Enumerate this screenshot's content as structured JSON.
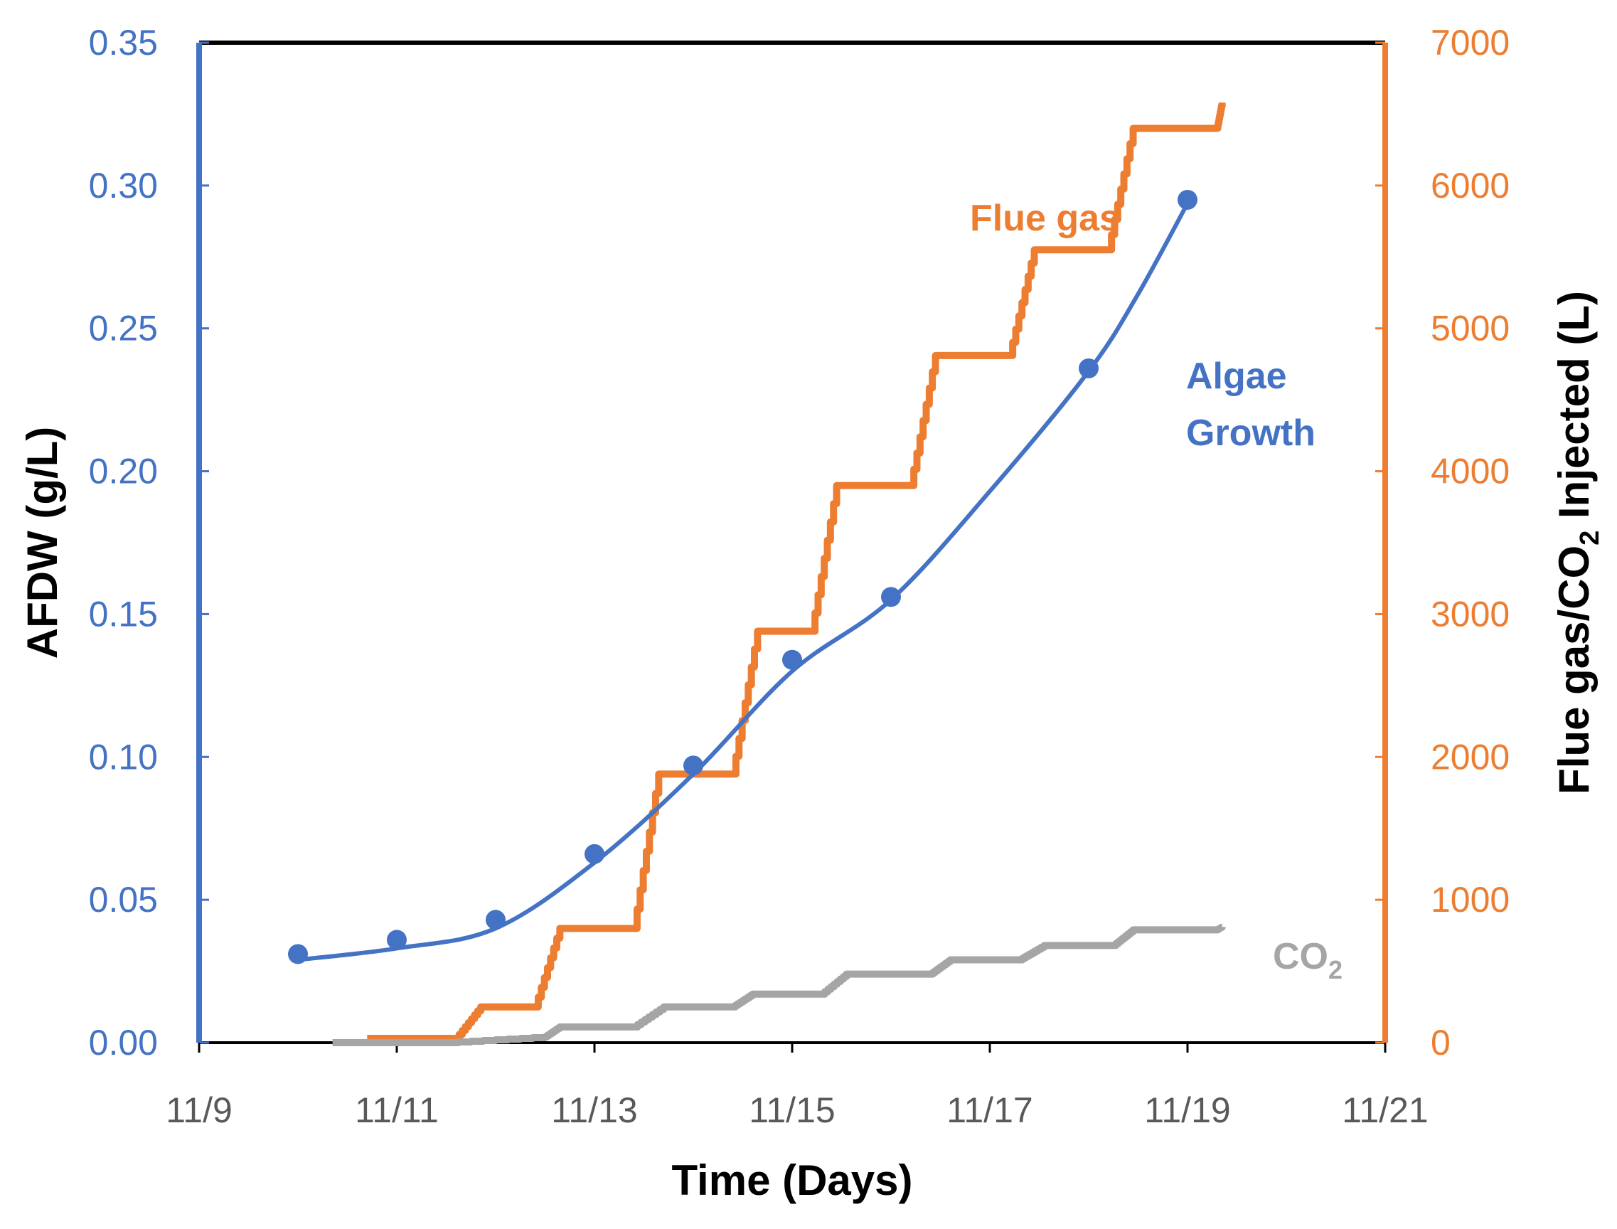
{
  "chart_data": {
    "type": "line",
    "title": "",
    "xlabel": "Time (Days)",
    "ylabel_left": "AFDW (g/L)",
    "ylabel_right": {
      "prefix": "Flue gas/CO",
      "sub": "2",
      "suffix": " Injected (L)"
    },
    "x_ticks": [
      "11/9",
      "11/11",
      "11/13",
      "11/15",
      "11/17",
      "11/19",
      "11/21"
    ],
    "xlim": [
      0,
      12
    ],
    "ylim_left": [
      0,
      0.35
    ],
    "ylim_right": [
      0,
      7000
    ],
    "y_ticks_left": [
      "0.00",
      "0.05",
      "0.10",
      "0.15",
      "0.20",
      "0.25",
      "0.30",
      "0.35"
    ],
    "y_ticks_right": [
      "0",
      "1000",
      "2000",
      "3000",
      "4000",
      "5000",
      "6000",
      "7000"
    ],
    "grid": false,
    "colors": {
      "algae": "#4472C4",
      "flue": "#ED7D31",
      "co2": "#A5A5A5",
      "frame": "#000000"
    },
    "annotations": {
      "flue": "Flue gas",
      "algae_line1": "Algae",
      "algae_line2": "Growth",
      "co2_main": "CO",
      "co2_sub": "2"
    },
    "series": [
      {
        "name": "Algae Growth",
        "axis": "left",
        "style": "markers+smooth",
        "points": [
          [
            1,
            0.031
          ],
          [
            2,
            0.036
          ],
          [
            3,
            0.043
          ],
          [
            4,
            0.066
          ],
          [
            5,
            0.097
          ],
          [
            6,
            0.134
          ],
          [
            7,
            0.156
          ],
          [
            9,
            0.236
          ],
          [
            10,
            0.295
          ]
        ],
        "fit": [
          [
            1,
            0.029
          ],
          [
            2,
            0.033
          ],
          [
            3,
            0.04
          ],
          [
            4,
            0.063
          ],
          [
            5,
            0.094
          ],
          [
            6,
            0.13
          ],
          [
            7,
            0.155
          ],
          [
            8,
            0.193
          ],
          [
            9,
            0.235
          ],
          [
            9.5,
            0.262
          ],
          [
            10.05,
            0.297
          ]
        ]
      },
      {
        "name": "Flue gas",
        "axis": "right",
        "style": "step",
        "points": [
          [
            1.7,
            30
          ],
          [
            2.6,
            30
          ],
          [
            2.85,
            250
          ],
          [
            3.4,
            250
          ],
          [
            3.65,
            800
          ],
          [
            4.4,
            800
          ],
          [
            4.65,
            1880
          ],
          [
            5.4,
            1880
          ],
          [
            5.65,
            2880
          ],
          [
            6.2,
            2880
          ],
          [
            6.45,
            3900
          ],
          [
            7.2,
            3900
          ],
          [
            7.45,
            4810
          ],
          [
            8.2,
            4810
          ],
          [
            8.45,
            5550
          ],
          [
            9.2,
            5550
          ],
          [
            9.45,
            6400
          ],
          [
            10.3,
            6400
          ],
          [
            10.35,
            6580
          ]
        ]
      },
      {
        "name": "CO2",
        "axis": "right",
        "style": "step",
        "points": [
          [
            1.35,
            0
          ],
          [
            2.5,
            0
          ],
          [
            3.5,
            40
          ],
          [
            3.65,
            110
          ],
          [
            4.4,
            110
          ],
          [
            4.7,
            250
          ],
          [
            5.4,
            250
          ],
          [
            5.6,
            340
          ],
          [
            6.3,
            340
          ],
          [
            6.55,
            480
          ],
          [
            7.4,
            480
          ],
          [
            7.6,
            580
          ],
          [
            8.3,
            580
          ],
          [
            8.55,
            680
          ],
          [
            9.25,
            680
          ],
          [
            9.45,
            790
          ],
          [
            10.3,
            790
          ],
          [
            10.35,
            810
          ]
        ]
      }
    ]
  }
}
